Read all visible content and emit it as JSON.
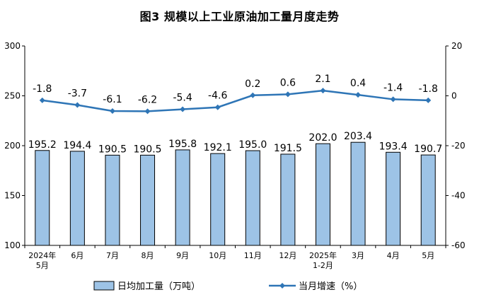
{
  "chart_data": {
    "type": "bar+line",
    "title": "图3  规模以上工业原油加工量月度走势",
    "categories": [
      [
        "2024年",
        "5月"
      ],
      [
        "6月"
      ],
      [
        "7月"
      ],
      [
        "8月"
      ],
      [
        "9月"
      ],
      [
        "10月"
      ],
      [
        "11月"
      ],
      [
        "12月"
      ],
      [
        "2025年",
        "1-2月"
      ],
      [
        "3月"
      ],
      [
        "4月"
      ],
      [
        "5月"
      ]
    ],
    "series": [
      {
        "name": "日均加工量（万吨）",
        "type": "bar",
        "axis": "left",
        "values": [
          195.2,
          194.4,
          190.5,
          190.5,
          195.8,
          192.1,
          195.0,
          191.5,
          202.0,
          203.4,
          193.4,
          190.7
        ],
        "labels": [
          "195.2",
          "194.4",
          "190.5",
          "190.5",
          "195.8",
          "192.1",
          "195.0",
          "191.5",
          "202.0",
          "203.4",
          "193.4",
          "190.7"
        ],
        "color": "#9dc3e6",
        "stroke": "#000000"
      },
      {
        "name": "当月增速（%）",
        "type": "line",
        "axis": "right",
        "values": [
          -1.8,
          -3.7,
          -6.1,
          -6.2,
          -5.4,
          -4.6,
          0.2,
          0.6,
          2.1,
          0.4,
          -1.4,
          -1.8
        ],
        "labels": [
          "-1.8",
          "-3.7",
          "-6.1",
          "-6.2",
          "-5.4",
          "-4.6",
          "0.2",
          "0.6",
          "2.1",
          "0.4",
          "-1.4",
          "-1.8"
        ],
        "color": "#2e75b6"
      }
    ],
    "y_left": {
      "min": 100,
      "max": 300,
      "ticks": [
        "100",
        "150",
        "200",
        "250",
        "300"
      ]
    },
    "y_right": {
      "min": -60,
      "max": 20,
      "ticks": [
        "-60",
        "-40",
        "-20",
        "0",
        "20"
      ]
    },
    "legend_position": "bottom"
  }
}
